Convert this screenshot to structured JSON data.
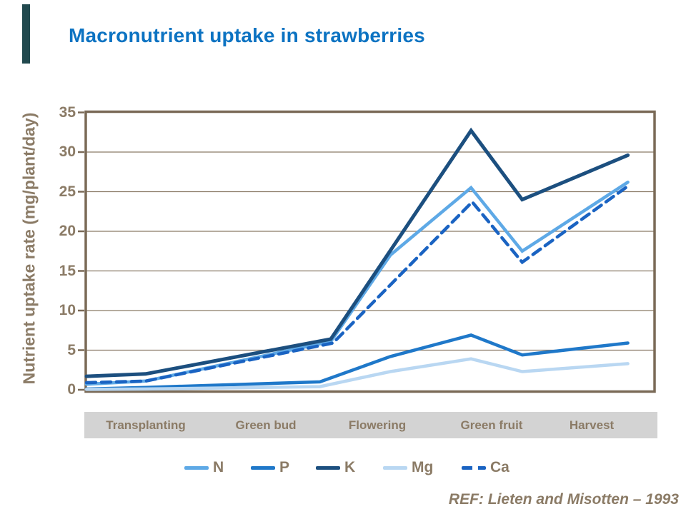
{
  "slide": {
    "title": "Macronutrient uptake in strawberries",
    "ref": "REF:  Lieten and Misotten – 1993",
    "title_color": "#0C73C2",
    "text_color": "#8B7B66",
    "accent_bar_color": "#21494E",
    "stage_band_color": "#D3D3D3"
  },
  "chart_data": {
    "type": "line",
    "title": "Macronutrient uptake in strawberries",
    "xlabel": "",
    "ylabel": "Nutrient uptake rate (mg/plant/day)",
    "ylim": [
      0,
      35
    ],
    "yticks": [
      0,
      5,
      10,
      15,
      20,
      25,
      30,
      35
    ],
    "grid": "horizontal gridlines at each 5 units, brown, plain white plot background",
    "axis_color": "#7A6A57",
    "legend_position": "bottom",
    "categories": [
      "Transplanting",
      "Green bud",
      "Flowering",
      "Green fruit",
      "Harvest"
    ],
    "x_note": "x of each point is a fraction of the plot width; the five stage labels span equal fifths of the axis band",
    "series": [
      {
        "name": "N",
        "color": "#5EA9E6",
        "dash": false,
        "points": [
          [
            0.0,
            0.7
          ],
          [
            0.104,
            1.1
          ],
          [
            0.43,
            6.1
          ],
          [
            0.535,
            17.0
          ],
          [
            0.677,
            25.5
          ],
          [
            0.767,
            17.5
          ],
          [
            0.953,
            26.2
          ]
        ]
      },
      {
        "name": "P",
        "color": "#1F78C9",
        "dash": false,
        "points": [
          [
            0.0,
            0.1
          ],
          [
            0.104,
            0.3
          ],
          [
            0.411,
            1.0
          ],
          [
            0.535,
            4.2
          ],
          [
            0.677,
            6.9
          ],
          [
            0.767,
            4.4
          ],
          [
            0.953,
            5.9
          ]
        ]
      },
      {
        "name": "K",
        "color": "#1C4F7F",
        "dash": false,
        "points": [
          [
            0.0,
            1.7
          ],
          [
            0.104,
            2.0
          ],
          [
            0.43,
            6.4
          ],
          [
            0.677,
            32.7
          ],
          [
            0.767,
            24.0
          ],
          [
            0.953,
            29.6
          ]
        ]
      },
      {
        "name": "Mg",
        "color": "#B9D7F2",
        "dash": false,
        "points": [
          [
            0.0,
            0.05
          ],
          [
            0.104,
            0.1
          ],
          [
            0.411,
            0.4
          ],
          [
            0.535,
            2.3
          ],
          [
            0.677,
            3.9
          ],
          [
            0.767,
            2.3
          ],
          [
            0.953,
            3.3
          ]
        ]
      },
      {
        "name": "Ca",
        "color": "#1A63C2",
        "dash": true,
        "points": [
          [
            0.0,
            0.9
          ],
          [
            0.104,
            1.1
          ],
          [
            0.434,
            5.9
          ],
          [
            0.679,
            23.7
          ],
          [
            0.767,
            16.1
          ],
          [
            0.953,
            25.7
          ]
        ]
      }
    ]
  }
}
